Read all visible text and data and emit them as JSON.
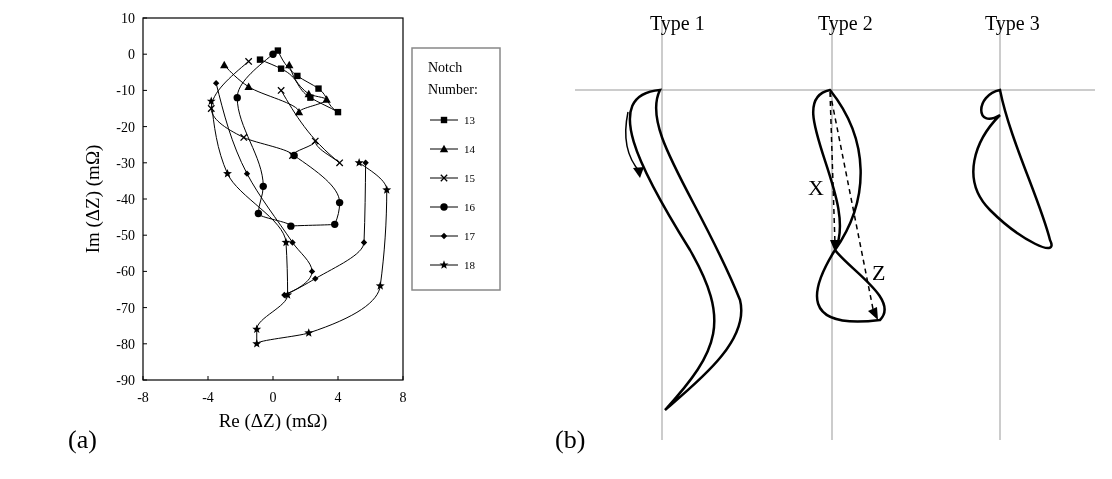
{
  "chart_data": [
    {
      "type": "line",
      "xlabel": "Re (ΔZ) (mΩ)",
      "ylabel": "Im (ΔZ) (mΩ)",
      "legend_title": "Notch Number:",
      "legend": "right",
      "xlim": [
        -8,
        8
      ],
      "xticks": [
        -8,
        -4,
        0,
        4,
        8
      ],
      "ylim": [
        -90,
        10
      ],
      "yticks": [
        10,
        0,
        -10,
        -20,
        -30,
        -40,
        -50,
        -60,
        -70,
        -80,
        -90
      ],
      "grid": false,
      "annotations": [
        "(a)"
      ],
      "series": [
        {
          "name": "13",
          "color": "#000000",
          "marker": "square",
          "x": [
            0.3,
            1.5,
            2.8,
            4,
            2.3,
            0.5,
            -0.8
          ],
          "values": [
            1,
            -6,
            -9.5,
            -16,
            -12,
            -4,
            -1.5
          ]
        },
        {
          "name": "14",
          "color": "#000000",
          "marker": "triangle",
          "x": [
            1,
            2.2,
            3.3,
            1.6,
            -1.5,
            -3
          ],
          "values": [
            -3,
            -11,
            -12.5,
            -16,
            -9,
            -3
          ]
        },
        {
          "name": "15",
          "color": "#000000",
          "marker": "cross",
          "x": [
            -1.5,
            -3.8,
            -1.8,
            1.2,
            2.6,
            4.1,
            0.5
          ],
          "values": [
            -2,
            -15,
            -23,
            -28,
            -24,
            -30,
            -10
          ]
        },
        {
          "name": "16",
          "color": "#000000",
          "marker": "circle",
          "x": [
            0,
            -2.2,
            -0.6,
            -0.9,
            1.1,
            3.8,
            4.1,
            1.3
          ],
          "values": [
            0,
            -12,
            -36.5,
            -44,
            -47.5,
            -47,
            -41,
            -28
          ]
        },
        {
          "name": "17",
          "color": "#000000",
          "marker": "diamond",
          "x": [
            -3.5,
            -1.6,
            1.2,
            2.4,
            0.7,
            2.6,
            5.6,
            5.7
          ],
          "values": [
            -8,
            -33,
            -52,
            -60,
            -66.5,
            -62,
            -52,
            -30
          ]
        },
        {
          "name": "18",
          "color": "#000000",
          "marker": "star",
          "x": [
            -3.8,
            -2.8,
            0.8,
            0.9,
            -1,
            -1,
            2.2,
            6.6,
            7,
            5.3
          ],
          "values": [
            -13,
            -33,
            -52,
            -66.5,
            -76,
            -80,
            -77,
            -64,
            -37.5,
            -30
          ]
        }
      ]
    },
    {
      "type": "other",
      "annotations": [
        "Type 1",
        "Type 2",
        "Type 3",
        "X",
        "Z",
        "(b)"
      ]
    }
  ]
}
